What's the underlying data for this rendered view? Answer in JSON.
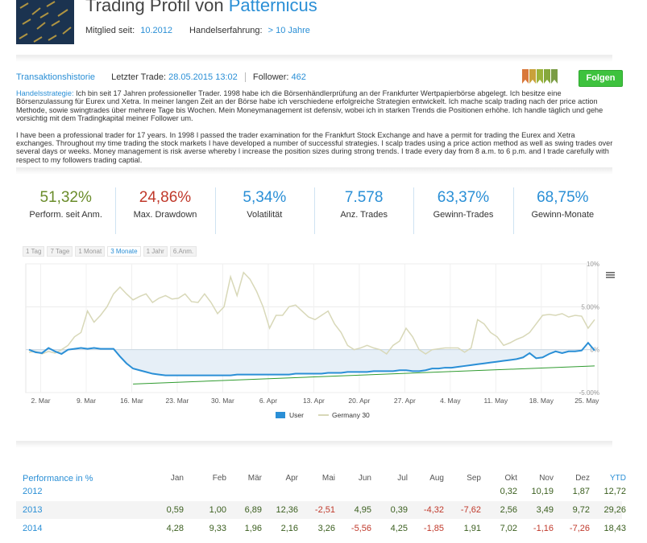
{
  "header": {
    "title_prefix": "Trading Profil von",
    "username": "Patternicus",
    "member_since_label": "Mitglied seit:",
    "member_since_value": "10.2012",
    "experience_label": "Handelserfahrung:",
    "experience_value": "> 10 Jahre"
  },
  "infobar": {
    "history_link": "Transaktionshistorie",
    "last_trade_label": "Letzter Trade:",
    "last_trade_value": "28.05.2015 13:02",
    "follower_label": "Follower:",
    "follower_value": "462",
    "follow_button": "Folgen"
  },
  "ribbons": [
    "#d9783a",
    "#c9a13a",
    "#9ab33a",
    "#86a83c",
    "#7a9c44"
  ],
  "description": {
    "strategy_label": "Handelsstrategie:",
    "strategy_de": "Ich bin seit 17 Jahren professioneller Trader. 1998 habe ich die Börsenhändlerprüfung an der Frankfurter Wertpapierbörse abgelegt. Ich besitze eine Börsenzulassung für Eurex und Xetra. In meiner langen Zeit an der Börse habe ich verschiedene erfolgreiche Strategien entwickelt. Ich mache scalp trading nach der price action Methode, sowie swingtrades über mehrere Tage bis Wochen. Mein Moneymanagement ist defensiv, wobei ich in starken Trends die Positionen erhöhe. Ich handle täglich und gehe vorsichtig mit dem Tradingkapital meiner Follower um.",
    "strategy_en": "I have been a professional trader for 17 years. In 1998 I passed the trader examination for the Frankfurt Stock Exchange and have a permit for trading the Eurex and Xetra exchanges. Throughout my time trading the stock markets I have developed a number of successful strategies. I scalp trades using a price action method as well as swing trades over several days or weeks. Money management is risk averse whereby I increase the position sizes during strong trends. I trade every day from 8 a.m. to 6 p.m. and I trade carefully with respect to my followers trading captial."
  },
  "stats": [
    {
      "value": "51,32%",
      "label": "Perform. seit Anm.",
      "color": "#6a8c2a"
    },
    {
      "value": "24,86%",
      "label": "Max. Drawdown",
      "color": "#c0392b"
    },
    {
      "value": "5,34%",
      "label": "Volatilität",
      "color": "#2a8fd6"
    },
    {
      "value": "7.578",
      "label": "Anz. Trades",
      "color": "#2a8fd6"
    },
    {
      "value": "63,37%",
      "label": "Gewinn-Trades",
      "color": "#2a8fd6"
    },
    {
      "value": "68,75%",
      "label": "Gewinn-Monate",
      "color": "#2a8fd6"
    }
  ],
  "range_tabs": [
    "1 Tag",
    "7 Tage",
    "1 Monat",
    "3 Monate",
    "1 Jahr",
    "6.Anm."
  ],
  "active_range": "3 Monate",
  "chart_data": {
    "type": "line",
    "x_ticks": [
      "2. Mar",
      "9. Mar",
      "16. Mar",
      "23. Mar",
      "30. Mar",
      "6. Apr",
      "13. Apr",
      "20. Apr",
      "27. Apr",
      "4. May",
      "11. May",
      "18. May",
      "25. May"
    ],
    "y_ticks": [
      "10%",
      "5.00%",
      "0%",
      "-5.00%"
    ],
    "ylim": [
      -5,
      10
    ],
    "legend_position": "bottom",
    "series": [
      {
        "name": "User",
        "color": "#2a8fd6",
        "x": [
          0,
          1,
          2,
          3,
          4,
          5,
          6,
          7,
          8,
          9,
          10,
          11,
          12,
          13,
          14,
          15,
          16,
          17,
          18,
          19,
          20,
          21,
          22,
          23,
          24,
          25,
          26,
          27,
          28,
          29,
          30,
          31,
          32,
          33,
          34,
          35,
          36,
          37,
          38,
          39,
          40,
          41,
          42,
          43,
          44,
          45,
          46,
          47,
          48,
          49,
          50,
          51,
          52,
          53,
          54,
          55,
          56,
          57,
          58,
          59,
          60,
          61,
          62,
          63,
          64,
          65,
          66,
          67,
          68,
          69,
          70,
          71,
          72,
          73,
          74,
          75,
          76,
          77,
          78,
          79,
          80,
          81,
          82,
          83,
          84,
          85,
          86,
          87
        ],
        "values": [
          0,
          -0.3,
          -0.4,
          0.2,
          -0.2,
          -0.5,
          0,
          0.1,
          0.2,
          0.1,
          0.2,
          0.1,
          0.1,
          0.1,
          -0.8,
          -1.6,
          -2.2,
          -2.4,
          -2.6,
          -2.8,
          -2.9,
          -3.0,
          -3.0,
          -3.0,
          -3.0,
          -3.0,
          -3.0,
          -3.0,
          -3.0,
          -3.0,
          -3.0,
          -3.0,
          -2.9,
          -2.9,
          -2.9,
          -2.9,
          -2.9,
          -2.9,
          -2.9,
          -2.9,
          -2.9,
          -2.8,
          -2.8,
          -2.8,
          -2.8,
          -2.8,
          -2.7,
          -2.7,
          -2.7,
          -2.6,
          -2.6,
          -2.6,
          -2.6,
          -2.5,
          -2.5,
          -2.5,
          -2.5,
          -2.4,
          -2.4,
          -2.5,
          -2.5,
          -2.4,
          -2.2,
          -2.2,
          -2.1,
          -2.1,
          -2.0,
          -1.9,
          -1.8,
          -1.7,
          -1.6,
          -1.5,
          -1.4,
          -1.3,
          -1.2,
          -1.1,
          -0.9,
          -0.4,
          -1.0,
          -0.9,
          -0.5,
          -0.2,
          -0.4,
          -0.2,
          -0.2,
          -0.1,
          0.8,
          -0.1
        ]
      },
      {
        "name": "Germany 30",
        "color": "#d8d8b8",
        "x": [
          0,
          1,
          2,
          3,
          4,
          5,
          6,
          7,
          8,
          9,
          10,
          11,
          12,
          13,
          14,
          15,
          16,
          17,
          18,
          19,
          20,
          21,
          22,
          23,
          24,
          25,
          26,
          27,
          28,
          29,
          30,
          31,
          32,
          33,
          34,
          35,
          36,
          37,
          38,
          39,
          40,
          41,
          42,
          43,
          44,
          45,
          46,
          47,
          48,
          49,
          50,
          51,
          52,
          53,
          54,
          55,
          56,
          57,
          58,
          59,
          60,
          61,
          62,
          63,
          64,
          65,
          66,
          67,
          68,
          69,
          70,
          71,
          72,
          73,
          74,
          75,
          76,
          77,
          78,
          79,
          80,
          81,
          82,
          83,
          84,
          85,
          86,
          87
        ],
        "values": [
          -0.3,
          -0.2,
          -0.5,
          -0.2,
          -0.4,
          0,
          0.5,
          1.5,
          2.0,
          4.5,
          3.2,
          4.0,
          5.0,
          6.5,
          7.3,
          6.5,
          5.8,
          6.2,
          6.5,
          5.5,
          6.0,
          6.3,
          5.9,
          6.0,
          6.5,
          5.6,
          5.5,
          6.5,
          5.5,
          4.2,
          5.0,
          8.5,
          6.3,
          9.0,
          8.2,
          6.8,
          5.0,
          2.5,
          4.0,
          4.0,
          5.0,
          5.2,
          4.5,
          3.8,
          3.5,
          4.0,
          4.5,
          3.0,
          2.0,
          0.5,
          0,
          0.2,
          0.5,
          0.2,
          0,
          -0.5,
          0.5,
          1.0,
          2.5,
          1.5,
          0,
          -0.5,
          0,
          0.1,
          0.2,
          0.2,
          0.2,
          -0.3,
          0.2,
          3.5,
          3.0,
          2.0,
          1.5,
          0.5,
          0.8,
          1.2,
          1.5,
          2.0,
          3.0,
          4.0,
          4.1,
          4.0,
          4.2,
          3.8,
          4.0,
          3.9,
          2.5,
          3.5
        ]
      },
      {
        "name": "",
        "color": "#2f9b2f",
        "x": [
          16,
          87
        ],
        "values": [
          -4.0,
          -1.9
        ]
      }
    ]
  },
  "performance_table": {
    "title": "Performance in %",
    "columns": [
      "Jan",
      "Feb",
      "Mär",
      "Apr",
      "Mai",
      "Jun",
      "Jul",
      "Aug",
      "Sep",
      "Okt",
      "Nov",
      "Dez",
      "YTD"
    ],
    "rows": [
      {
        "year": "2012",
        "values": [
          "",
          "",
          "",
          "",
          "",
          "",
          "",
          "",
          "",
          "0,32",
          "10,19",
          "1,87",
          "12,72"
        ]
      },
      {
        "year": "2013",
        "values": [
          "0,59",
          "1,00",
          "6,89",
          "12,36",
          "-2,51",
          "4,95",
          "0,39",
          "-4,32",
          "-7,62",
          "2,56",
          "3,49",
          "9,72",
          "29,26"
        ]
      },
      {
        "year": "2014",
        "values": [
          "4,28",
          "9,33",
          "1,96",
          "2,16",
          "3,26",
          "-5,56",
          "4,25",
          "-1,85",
          "1,91",
          "7,02",
          "-1,16",
          "-7,26",
          "18,43"
        ]
      }
    ]
  }
}
